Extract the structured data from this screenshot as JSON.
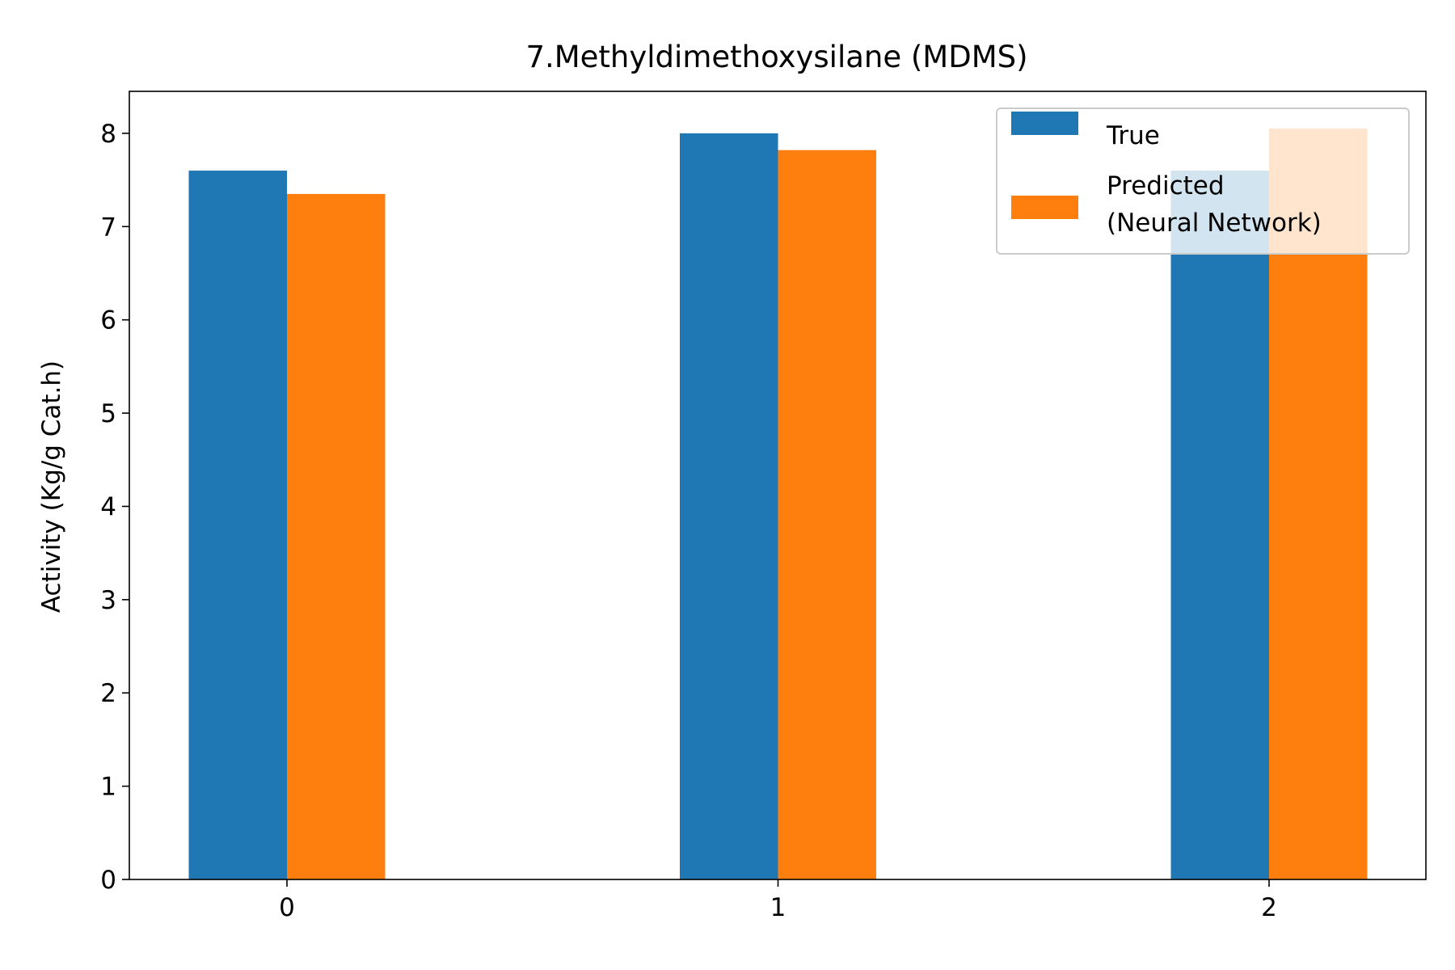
{
  "chart_data": {
    "type": "bar",
    "title": "7.Methyldimethoxysilane (MDMS)",
    "xlabel": "",
    "ylabel": "Activity (Kg/g Cat.h)",
    "categories": [
      "0",
      "1",
      "2"
    ],
    "series": [
      {
        "name": "True",
        "values": [
          7.6,
          8.0,
          7.6
        ],
        "color": "#1f77b4"
      },
      {
        "name": "Predicted\n(Neural Network)",
        "values": [
          7.35,
          7.82,
          8.05
        ],
        "color": "#ff7f0e"
      }
    ],
    "ylim": [
      0,
      8.45
    ],
    "yticks": [
      "0",
      "1",
      "2",
      "3",
      "4",
      "5",
      "6",
      "7",
      "8"
    ],
    "grid": false,
    "legend_position": "top-right"
  }
}
